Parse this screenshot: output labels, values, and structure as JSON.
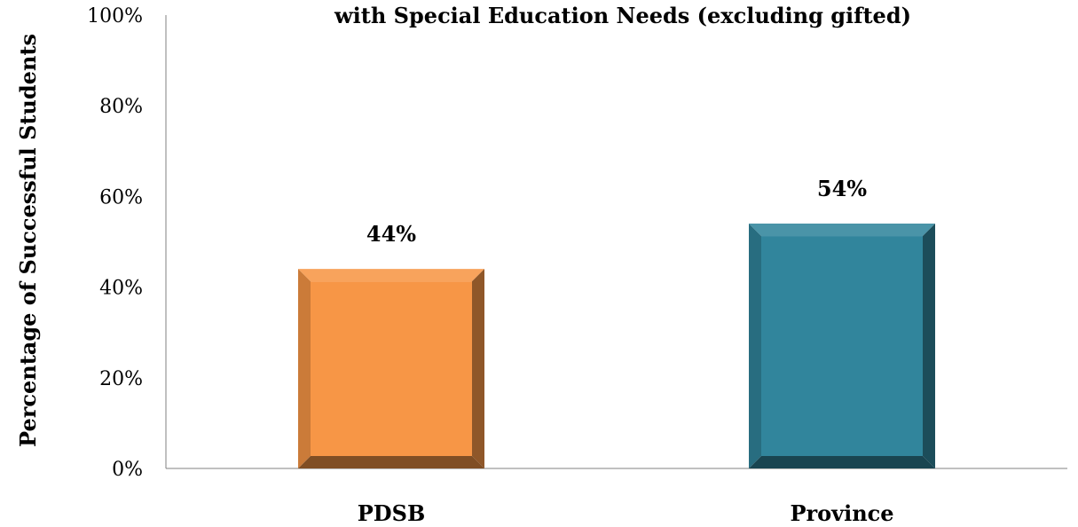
{
  "chart_data": {
    "type": "bar",
    "title": "with Special Education Needs (excluding gifted)",
    "ylabel": "Percentage of Successful Students",
    "xlabel": "",
    "categories": [
      "PDSB",
      "Province"
    ],
    "values": [
      44,
      54
    ],
    "data_labels": [
      "44%",
      "54%"
    ],
    "ylim": [
      0,
      100
    ],
    "yticks": [
      0,
      20,
      40,
      60,
      80,
      100
    ],
    "ytick_labels": [
      "0%",
      "20%",
      "40%",
      "60%",
      "80%",
      "100%"
    ],
    "bar_colors": [
      "#F79646",
      "#31859C"
    ],
    "grid": false,
    "legend": "none"
  }
}
